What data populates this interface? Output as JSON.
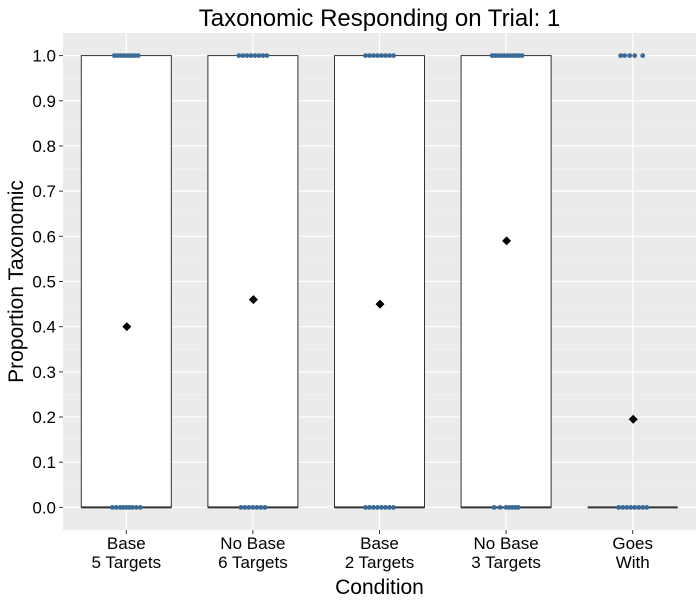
{
  "chart_data": {
    "type": "box",
    "title": "Taxonomic Responding on Trial: 1",
    "xlabel": "Condition",
    "ylabel": "Proportion Taxonomic",
    "categories": [
      [
        "Base",
        "5 Targets"
      ],
      [
        "No Base",
        "6 Targets"
      ],
      [
        "Base",
        "2 Targets"
      ],
      [
        "No Base",
        "3 Targets"
      ],
      [
        "Goes",
        "With"
      ]
    ],
    "ylim": [
      -0.05,
      1.05
    ],
    "yticks": [
      0.0,
      0.1,
      0.2,
      0.3,
      0.4,
      0.5,
      0.6,
      0.7,
      0.8,
      0.9,
      1.0
    ],
    "ytick_labels": [
      "0.0",
      "0.1",
      "0.2",
      "0.3",
      "0.4",
      "0.5",
      "0.6",
      "0.7",
      "0.8",
      "0.9",
      "1.0"
    ],
    "grid": true,
    "boxes": [
      {
        "q1": 0.0,
        "median": 0.0,
        "q3": 1.0,
        "whisker_low": 0.0,
        "whisker_high": 1.0
      },
      {
        "q1": 0.0,
        "median": 0.0,
        "q3": 1.0,
        "whisker_low": 0.0,
        "whisker_high": 1.0
      },
      {
        "q1": 0.0,
        "median": 0.0,
        "q3": 1.0,
        "whisker_low": 0.0,
        "whisker_high": 1.0
      },
      {
        "q1": 0.0,
        "median": 0.0,
        "q3": 1.0,
        "whisker_low": 0.0,
        "whisker_high": 1.0
      },
      {
        "q1": 0.0,
        "median": 0.0,
        "q3": 0.0,
        "whisker_low": 0.0,
        "whisker_high": 0.0
      }
    ],
    "means": [
      0.4,
      0.46,
      0.45,
      0.59,
      0.195
    ],
    "points_value_high": 1.0,
    "points_value_low": 0.0,
    "colors": {
      "panel_background": "#EBEBEB",
      "grid_major": "#FFFFFF",
      "grid_minor": "#F2F2F2",
      "box_fill": "#FFFFFF",
      "box_outline": "#333333",
      "points": "#3A6A96",
      "mean_marker": "#000000",
      "text": "#000000"
    }
  }
}
